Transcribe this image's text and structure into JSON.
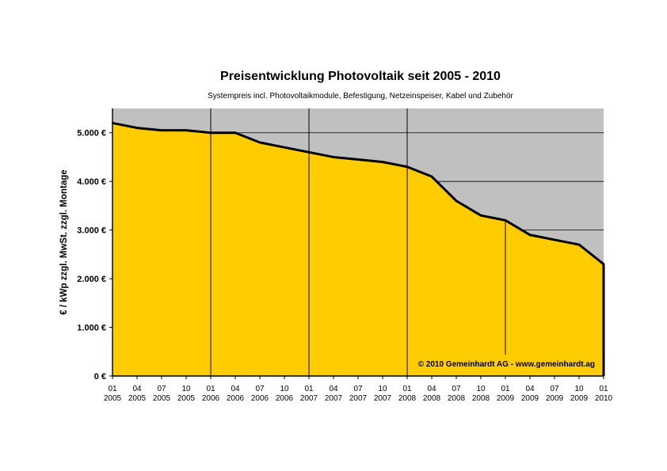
{
  "chart_data": {
    "type": "area",
    "title": "Preisentwicklung Photovoltaik seit 2005 - 2010",
    "subtitle": "Systempreis incl. Photovoltaikmodule, Befestigung, Netzeinspeiser, Kabel und Zubehör",
    "ylabel": "€ / kWp zzgl. MwSt. zzgl. Montage",
    "xlabel": "",
    "ylim": [
      0,
      5500
    ],
    "yticks": [
      0,
      1000,
      2000,
      3000,
      4000,
      5000
    ],
    "ytick_labels": [
      "0 €",
      "1.000 €",
      "2.000 €",
      "3.000 €",
      "4.000 €",
      "5.000 €"
    ],
    "x_months": [
      "01",
      "04",
      "07",
      "10",
      "01",
      "04",
      "07",
      "10",
      "01",
      "04",
      "07",
      "10",
      "01",
      "04",
      "07",
      "10",
      "01",
      "04",
      "07",
      "10",
      "01"
    ],
    "x_years": [
      "2005",
      "2005",
      "2005",
      "2005",
      "2006",
      "2006",
      "2006",
      "2006",
      "2007",
      "2007",
      "2007",
      "2007",
      "2008",
      "2008",
      "2008",
      "2008",
      "2009",
      "2009",
      "2009",
      "2009",
      "2010"
    ],
    "values": [
      5200,
      5100,
      5050,
      5050,
      5000,
      5000,
      4800,
      4700,
      4600,
      4500,
      4450,
      4400,
      4300,
      4100,
      3600,
      3300,
      3200,
      2900,
      2800,
      2700,
      2300
    ],
    "year_dividers": [
      "01 2006",
      "01 2007",
      "01 2008",
      "01 2009"
    ],
    "annotation": "© 2010 Gemeinhardt AG - www.gemeinhardt.ag",
    "colors": {
      "fill": "#FFCC00",
      "background": "#C0C0C0",
      "line": "#000000",
      "grid": "#000000"
    },
    "grid": true,
    "legend": "none"
  }
}
